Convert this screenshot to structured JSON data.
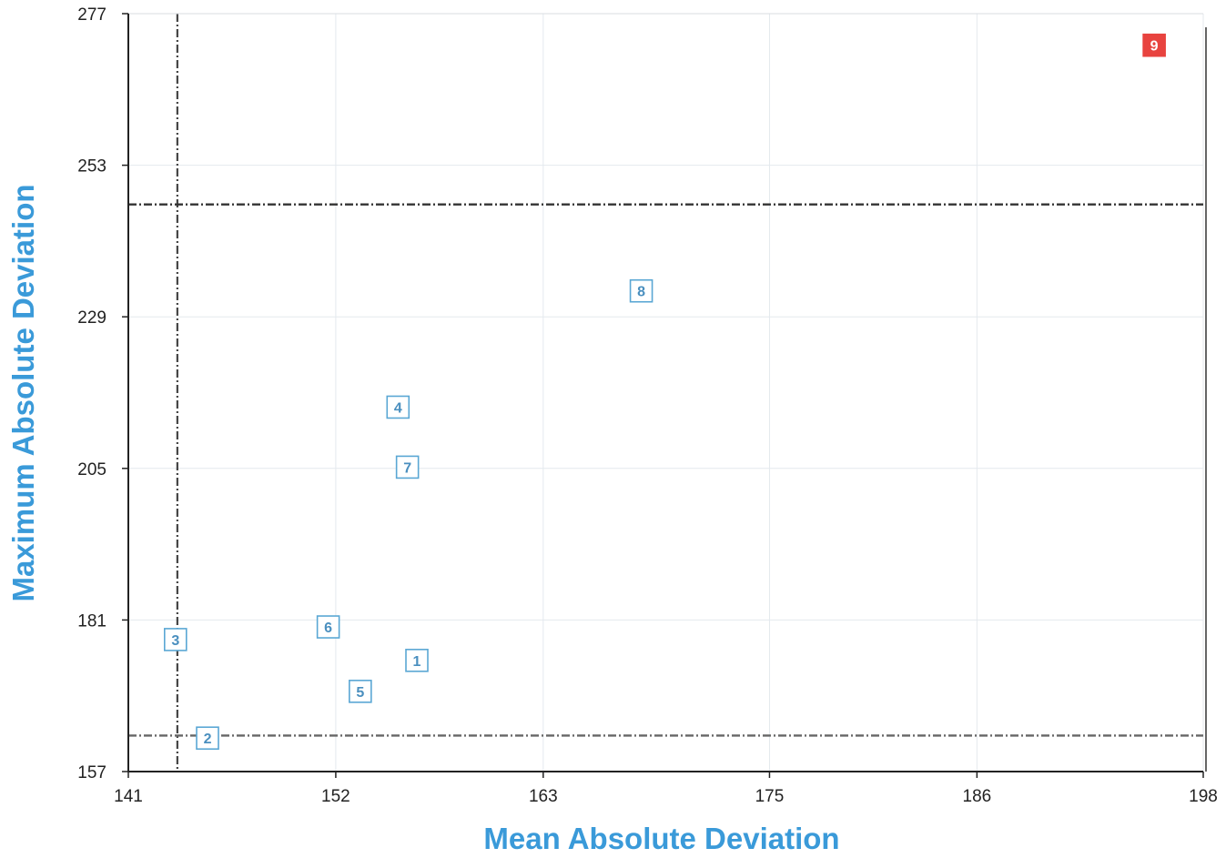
{
  "chart_data": {
    "type": "scatter",
    "xlabel": "Mean Absolute Deviation",
    "ylabel": "Maximum Absolute Deviation",
    "xlim": [
      141,
      198
    ],
    "ylim": [
      157,
      277
    ],
    "x_ticks": [
      "141",
      "152",
      "163",
      "175",
      "186",
      "198"
    ],
    "y_ticks": [
      "157",
      "181",
      "205",
      "229",
      "253",
      "277"
    ],
    "grid": true,
    "points": [
      {
        "label": "1",
        "x": 156.3,
        "y": 174.6,
        "highlight": false
      },
      {
        "label": "2",
        "x": 145.2,
        "y": 162.3,
        "highlight": false
      },
      {
        "label": "3",
        "x": 143.5,
        "y": 177.9,
        "highlight": false
      },
      {
        "label": "4",
        "x": 155.3,
        "y": 214.7,
        "highlight": false
      },
      {
        "label": "5",
        "x": 153.3,
        "y": 169.7,
        "highlight": false
      },
      {
        "label": "6",
        "x": 151.6,
        "y": 179.9,
        "highlight": false
      },
      {
        "label": "7",
        "x": 155.8,
        "y": 205.2,
        "highlight": false
      },
      {
        "label": "8",
        "x": 168.2,
        "y": 233.1,
        "highlight": false
      },
      {
        "label": "9",
        "x": 195.4,
        "y": 272.0,
        "highlight": true
      }
    ],
    "reference_lines": {
      "vertical_x": 143.6,
      "horizontal_y": [
        246.8,
        162.7
      ]
    },
    "colors": {
      "point": "#5aa7d4",
      "highlight": "#e8433f",
      "axis_title": "#3a9ad9"
    }
  }
}
